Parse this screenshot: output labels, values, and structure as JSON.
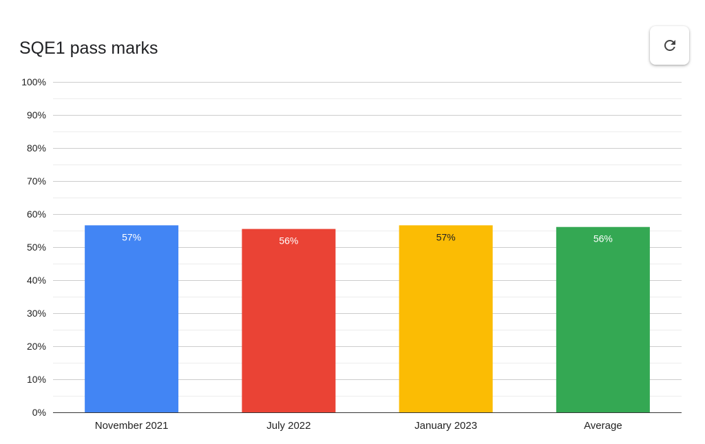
{
  "refresh_icon": "refresh-icon",
  "chart_data": {
    "type": "bar",
    "title": "SQE1 pass marks",
    "categories": [
      "November 2021",
      "July 2022",
      "January 2023",
      "Average"
    ],
    "values": [
      57,
      56,
      57,
      56
    ],
    "exact_values": [
      56.6,
      55.5,
      56.6,
      56.1
    ],
    "data_labels": [
      "57%",
      "56%",
      "57%",
      "56%"
    ],
    "colors": [
      "#4285f4",
      "#ea4335",
      "#fbbc04",
      "#34a853"
    ],
    "label_colors": [
      "#ffffff",
      "#ffffff",
      "#202124",
      "#ffffff"
    ],
    "ylim": [
      0,
      100
    ],
    "y_ticks": [
      0,
      10,
      20,
      30,
      40,
      50,
      60,
      70,
      80,
      90,
      100
    ],
    "y_tick_labels": [
      "0%",
      "10%",
      "20%",
      "30%",
      "40%",
      "50%",
      "60%",
      "70%",
      "80%",
      "90%",
      "100%"
    ],
    "xlabel": "",
    "ylabel": "",
    "grid": true,
    "legend": "none"
  }
}
